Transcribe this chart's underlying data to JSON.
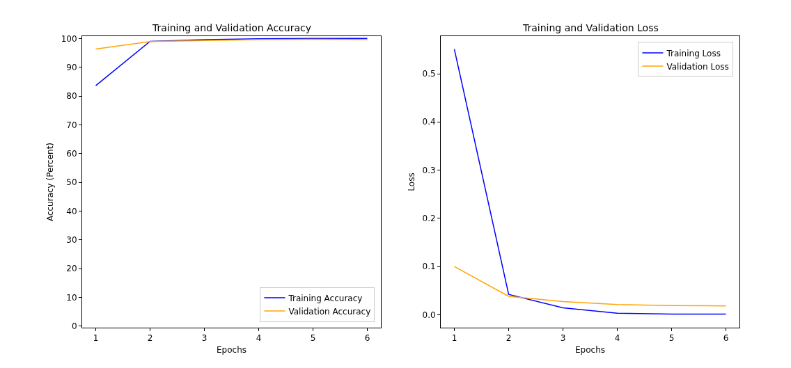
{
  "chart_data": [
    {
      "type": "line",
      "title": "Training and Validation Accuracy",
      "xlabel": "Epochs",
      "ylabel": "Accuracy (Percent)",
      "x": [
        1,
        2,
        3,
        4,
        5,
        6
      ],
      "xlim": [
        0.75,
        6.25
      ],
      "xticks": [
        1,
        2,
        3,
        4,
        5,
        6
      ],
      "ylim": [
        -0.5,
        100.8
      ],
      "yticks": [
        0,
        10,
        20,
        30,
        40,
        50,
        60,
        70,
        80,
        90,
        100
      ],
      "grid": false,
      "legend": "bottom right",
      "marker": "none",
      "line_style": "solid",
      "series": [
        {
          "name": "Training Accuracy",
          "color": "#0000ff",
          "values": [
            83.6,
            99.0,
            99.6,
            99.9,
            100.0,
            100.0
          ]
        },
        {
          "name": "Validation Accuracy",
          "color": "#ffa500",
          "values": [
            96.3,
            98.9,
            99.3,
            99.6,
            99.7,
            99.6
          ]
        }
      ]
    },
    {
      "type": "line",
      "title": "Training and Validation Loss",
      "xlabel": "Epochs",
      "ylabel": "Loss",
      "x": [
        1,
        2,
        3,
        4,
        5,
        6
      ],
      "xlim": [
        0.75,
        6.25
      ],
      "xticks": [
        1,
        2,
        3,
        4,
        5,
        6
      ],
      "ylim": [
        -0.027,
        0.578
      ],
      "yticks": [
        {
          "value": 0,
          "label": "0.0"
        },
        {
          "value": 0.1,
          "label": "0.1"
        },
        {
          "value": 0.2,
          "label": "0.2"
        },
        {
          "value": 0.3,
          "label": "0.3"
        },
        {
          "value": 0.4,
          "label": "0.4"
        },
        {
          "value": 0.5,
          "label": "0.5"
        }
      ],
      "grid": false,
      "legend": "top right",
      "marker": "none",
      "line_style": "solid",
      "series": [
        {
          "name": "Training Loss",
          "color": "#0000ff",
          "values": [
            0.551,
            0.042,
            0.014,
            0.003,
            0.001,
            0.001
          ]
        },
        {
          "name": "Validation Loss",
          "color": "#ffa500",
          "values": [
            0.1,
            0.038,
            0.027,
            0.021,
            0.019,
            0.018
          ]
        }
      ]
    }
  ]
}
